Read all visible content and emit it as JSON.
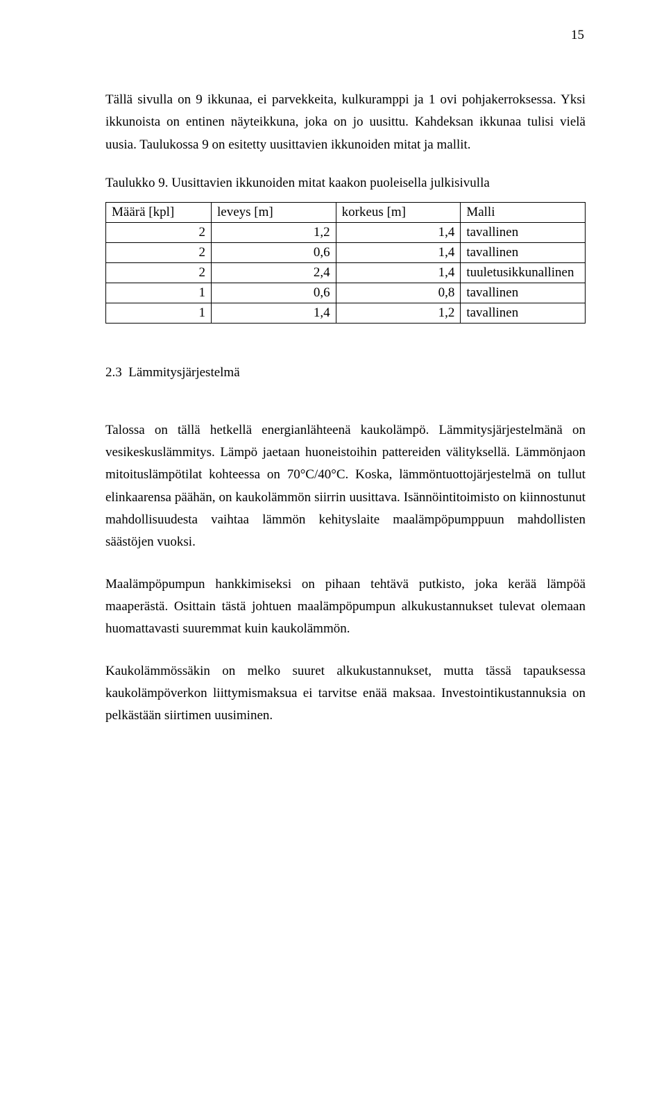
{
  "page_number": "15",
  "paragraphs": {
    "intro": "Tällä sivulla on 9 ikkunaa, ei parvekkeita, kulkuramppi ja 1 ovi pohjakerroksessa. Yksi ikkunoista on entinen näyteikkuna, joka on jo uusittu. Kahdeksan ikkunaa tulisi vielä uusia. Taulukossa 9 on esitetty uusittavien ikkunoiden mitat ja mallit.",
    "p1": "Talossa on tällä hetkellä energianlähteenä kaukolämpö. Lämmitysjärjestelmänä on vesikeskuslämmitys. Lämpö jaetaan huoneistoihin pattereiden välityksellä. Lämmönjaon mitoituslämpötilat kohteessa on 70°C/40°C. Koska, lämmöntuottojärjestelmä on tullut elinkaarensa päähän, on kaukolämmön siirrin uusittava. Isännöintitoimisto on kiinnostunut mahdollisuudesta vaihtaa lämmön kehityslaite maalämpöpumppuun mahdollisten säästöjen vuoksi.",
    "p2": "Maalämpöpumpun hankkimiseksi on pihaan tehtävä putkisto, joka kerää lämpöä maaperästä. Osittain tästä johtuen maalämpöpumpun alkukustannukset tulevat olemaan huomattavasti suuremmat kuin kaukolämmön.",
    "p3": "Kaukolämmössäkin on melko suuret alkukustannukset, mutta tässä tapauksessa kaukolämpöverkon liittymismaksua ei tarvitse enää maksaa. Investointikustannuksia on pelkästään siirtimen uusiminen."
  },
  "section": {
    "number": "2.3",
    "title": "Lämmitysjärjestelmä"
  },
  "table": {
    "caption": "Taulukko 9. Uusittavien ikkunoiden mitat kaakon puoleisella julkisivulla",
    "columns": [
      "Määrä [kpl]",
      "leveys [m]",
      "korkeus [m]",
      "Malli"
    ],
    "rows": [
      [
        "2",
        "1,2",
        "1,4",
        "tavallinen"
      ],
      [
        "2",
        "0,6",
        "1,4",
        "tavallinen"
      ],
      [
        "2",
        "2,4",
        "1,4",
        "tuuletusikkunallinen"
      ],
      [
        "1",
        "0,6",
        "0,8",
        "tavallinen"
      ],
      [
        "1",
        "1,4",
        "1,2",
        "tavallinen"
      ]
    ],
    "border_color": "#000000",
    "background_color": "#ffffff",
    "font_size_pt": 14
  },
  "typography": {
    "font_family": "Times New Roman",
    "body_font_size_pt": 14,
    "text_color": "#000000",
    "background_color": "#ffffff"
  }
}
